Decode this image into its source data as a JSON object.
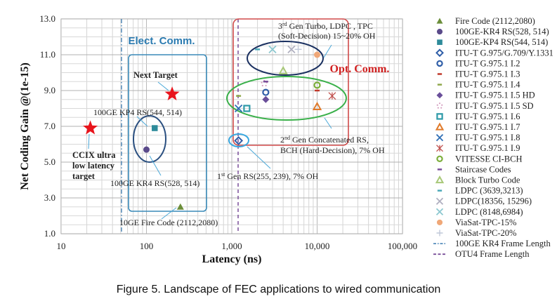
{
  "caption": "Figure 5. Landscape of FEC applications to wired communication",
  "chart_data": {
    "type": "scatter",
    "title": "",
    "xlabel": "Latency  (ns)",
    "ylabel": "Net Coding Gain @(1e-15)",
    "xscale": "log",
    "xlim": [
      10,
      100000
    ],
    "ylim": [
      1.0,
      13.0
    ],
    "xticks": [
      10,
      100,
      1000,
      10000,
      100000
    ],
    "xtick_labels": [
      "10",
      "100",
      "1,000",
      "10,000",
      "100,000"
    ],
    "yticks": [
      1.0,
      3.0,
      5.0,
      7.0,
      9.0,
      11.0,
      13.0
    ],
    "ytick_labels": [
      "1.0",
      "3.0",
      "5.0",
      "7.0",
      "9.0",
      "11.0",
      "13.0"
    ],
    "grid": true,
    "legend_position": "right",
    "series": [
      {
        "name": "Fire Code (2112,2080)",
        "marker": "triangle",
        "color": "#6b8e3a",
        "points": [
          [
            250,
            2.5
          ]
        ]
      },
      {
        "name": "100GE-KR4 RS(528, 514)",
        "marker": "circle",
        "color": "#5a4a8a",
        "points": [
          [
            100,
            5.7
          ]
        ]
      },
      {
        "name": "100GE-KP4 RS(544, 514)",
        "marker": "square",
        "color": "#2e8b9a",
        "points": [
          [
            125,
            6.9
          ]
        ]
      },
      {
        "name": "ITU-T G.975/G.709/Y.1331",
        "marker": "diamond-open",
        "color": "#2f5ea8",
        "points": [
          [
            1200,
            6.2
          ]
        ]
      },
      {
        "name": "ITU-T G.975.1 I.2",
        "marker": "circle-open",
        "color": "#2f5ea8",
        "points": [
          [
            2500,
            8.9
          ]
        ]
      },
      {
        "name": "ITU-T G.975.1 I.3",
        "marker": "dash",
        "color": "#c0392b",
        "points": [
          [
            10000,
            9.0
          ]
        ]
      },
      {
        "name": "ITU-T G.975.1 I.4",
        "marker": "dash",
        "color": "#8fa84a",
        "points": [
          [
            1200,
            8.7
          ]
        ]
      },
      {
        "name": "ITU-T G.975.1 I.5 HD",
        "marker": "diamond",
        "color": "#6a4f9a",
        "points": [
          [
            2500,
            8.5
          ]
        ]
      },
      {
        "name": "ITU-T G.975.1 I.5 SD",
        "marker": "dotted",
        "color": "#d4a0c0",
        "points": [
          [
            2400,
            9.4
          ]
        ]
      },
      {
        "name": "ITU-T G.975.1 I.6",
        "marker": "square-open",
        "color": "#2e9aa8",
        "points": [
          [
            1500,
            8.0
          ]
        ]
      },
      {
        "name": "ITU-T G.975.1 I.7",
        "marker": "triangle-open",
        "color": "#e07a2a",
        "points": [
          [
            10000,
            8.1
          ]
        ]
      },
      {
        "name": "ITU-T G.975.1 I.8",
        "marker": "x",
        "color": "#2f6eb5",
        "points": [
          [
            1200,
            8.0
          ]
        ]
      },
      {
        "name": "ITU-T G.975.1 I.9",
        "marker": "star-x",
        "color": "#c0504d",
        "points": [
          [
            15000,
            8.7
          ]
        ]
      },
      {
        "name": "VITESSE CI-BCH",
        "marker": "circle-open",
        "color": "#7cae3a",
        "points": [
          [
            10000,
            9.3
          ]
        ]
      },
      {
        "name": "Staircase Codes",
        "marker": "dash",
        "color": "#7a4f9a",
        "points": [
          [
            2500,
            9.5
          ]
        ]
      },
      {
        "name": "Block Turbo Code",
        "marker": "triangle-open",
        "color": "#a8c878",
        "points": [
          [
            4000,
            10.1
          ]
        ]
      },
      {
        "name": "LDPC (3639,3213)",
        "marker": "dash",
        "color": "#4aa8b8",
        "points": [
          [
            2000,
            11.3
          ]
        ]
      },
      {
        "name": "LDPC(18356, 15296)",
        "marker": "x",
        "color": "#b0b0c0",
        "points": [
          [
            5000,
            11.3
          ]
        ]
      },
      {
        "name": "LDPC (8148,6984)",
        "marker": "x",
        "color": "#8cc8d0",
        "points": [
          [
            3000,
            11.3
          ]
        ]
      },
      {
        "name": "ViaSat-TPC-15%",
        "marker": "circle",
        "color": "#f0a878",
        "points": [
          [
            10000,
            11.0
          ]
        ]
      },
      {
        "name": "ViaSat-TPC-20%",
        "marker": "plus",
        "color": "#c0c8d8",
        "points": [
          [
            6000,
            11.3
          ]
        ]
      },
      {
        "name": "100GE KR4 Frame Length",
        "marker": "vline-dashdot",
        "color": "#3a7ab0",
        "x": 51
      },
      {
        "name": "OTU4 Frame Length",
        "marker": "vline-dash",
        "color": "#7a4f9a",
        "x": 1180
      }
    ],
    "targets": [
      {
        "name": "CCIX ultra low latency target",
        "marker": "star",
        "color": "#e8141c",
        "x": 22,
        "y": 6.9
      },
      {
        "name": "Next Target",
        "marker": "star",
        "color": "#e8141c",
        "x": 200,
        "y": 8.8
      }
    ],
    "annotations": [
      "Elect. Comm.",
      "Opt. Comm.",
      "Next Target",
      "100GE KP4 RS(544, 514)",
      "CCIX ultra",
      "low latency",
      "target",
      "100GE KR4 RS(528, 514)",
      "10GE Fire Code (2112,2080)",
      "1st Gen RS(255, 239), 7% OH",
      "2nd Gen Concatenated RS,",
      "BCH (Hard-Decision),  7% OH",
      "3rd Gen Turbo, LDPC , TPC",
      "(Soft-Decision) 15~20% OH"
    ]
  },
  "labels": {
    "elect": "Elect. Comm.",
    "opt": "Opt. Comm.",
    "next_target": "Next Target",
    "kp4": "100GE KP4 RS(544, 514)",
    "ccix1": "CCIX ultra",
    "ccix2": "low latency",
    "ccix3": "target",
    "kr4": "100GE KR4 RS(528, 514)",
    "fire": "10GE Fire Code (2112,2080)",
    "gen1_pre": "1",
    "gen1_sup": "st",
    "gen1_post": " Gen RS(255, 239), 7% OH",
    "gen2_pre": "2",
    "gen2_sup": "nd",
    "gen2_post": "  Gen Concatenated RS,",
    "gen2_line2": "BCH (Hard-Decision),  7% OH",
    "gen3_pre": "3",
    "gen3_sup": "rd",
    "gen3_post": "  Gen Turbo, LDPC , TPC",
    "gen3_line2": "(Soft-Decision) 15~20% OH"
  },
  "legend": [
    "Fire Code (2112,2080)",
    "100GE-KR4 RS(528, 514)",
    "100GE-KP4 RS(544, 514)",
    "ITU-T G.975/G.709/Y.1331",
    "ITU-T G.975.1 I.2",
    "ITU-T G.975.1 I.3",
    "ITU-T G.975.1 I.4",
    "ITU-T G.975.1 I.5 HD",
    "ITU-T G.975.1 I.5 SD",
    "ITU-T G.975.1 I.6",
    "ITU-T G.975.1 I.7",
    "ITU-T G.975.1 I.8",
    "ITU-T G.975.1 I.9",
    "VITESSE CI-BCH",
    "Staircase Codes",
    "Block Turbo Code",
    "LDPC (3639,3213)",
    "LDPC(18356, 15296)",
    "LDPC (8148,6984)",
    "ViaSat-TPC-15%",
    "ViaSat-TPC-20%",
    "100GE KR4 Frame Length",
    "OTU4 Frame Length"
  ],
  "axes": {
    "xlabel": "Latency  (ns)",
    "ylabel": "Net Coding Gain @(1e-15)",
    "xticks": [
      "10",
      "100",
      "1,000",
      "10,000",
      "100,000"
    ],
    "yticks": [
      "1.0",
      "3.0",
      "5.0",
      "7.0",
      "9.0",
      "11.0",
      "13.0"
    ]
  }
}
